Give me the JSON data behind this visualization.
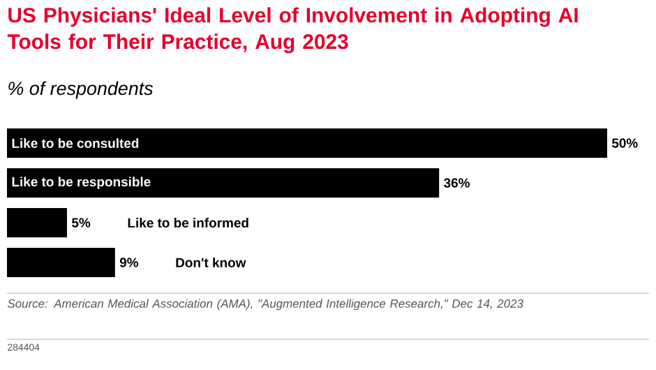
{
  "chart_data": {
    "type": "bar",
    "orientation": "horizontal",
    "title": "US Physicians' Ideal Level of Involvement in Adopting AI Tools for Their Practice, Aug 2023",
    "subtitle": "% of respondents",
    "categories": [
      "Like to be consulted",
      "Like to be responsible",
      "Like to be informed",
      "Don't know"
    ],
    "values": [
      50,
      36,
      5,
      9
    ],
    "value_labels": [
      "50%",
      "36%",
      "5%",
      "9%"
    ],
    "color": "#000000",
    "annotations": [
      "Source: American Medical Association (AMA), \"Augmented Intelligence Research,\" Dec 14, 2023",
      "284404"
    ]
  }
}
